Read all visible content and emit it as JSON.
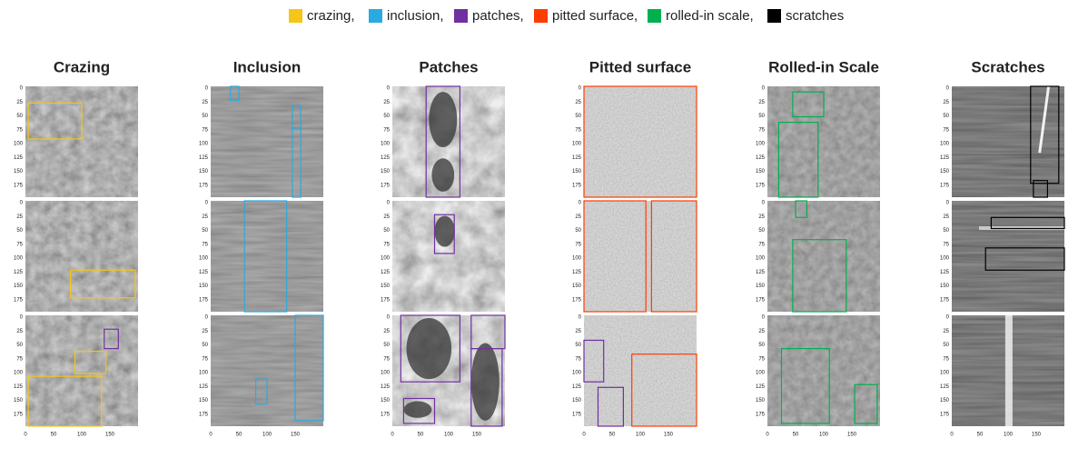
{
  "legend": [
    {
      "label": "crazing,",
      "color": "#f5c518"
    },
    {
      "label": "inclusion,",
      "color": "#29abe2"
    },
    {
      "label": "patches,",
      "color": "#7030a0"
    },
    {
      "label": "pitted surface,",
      "color": "#ff3c00"
    },
    {
      "label": "rolled-in scale,",
      "color": "#00b050"
    },
    {
      "label": "scratches",
      "color": "#000000"
    }
  ],
  "columns": [
    {
      "title": "Crazing"
    },
    {
      "title": "Inclusion"
    },
    {
      "title": "Patches"
    },
    {
      "title": "Pitted surface"
    },
    {
      "title": "Rolled-in Scale"
    },
    {
      "title": "Scratches"
    }
  ],
  "y_tick_labels": [
    "0",
    "25",
    "50",
    "75",
    "100",
    "125",
    "150",
    "175"
  ],
  "x_tick_labels": [
    "0",
    "50",
    "100",
    "150"
  ]
}
